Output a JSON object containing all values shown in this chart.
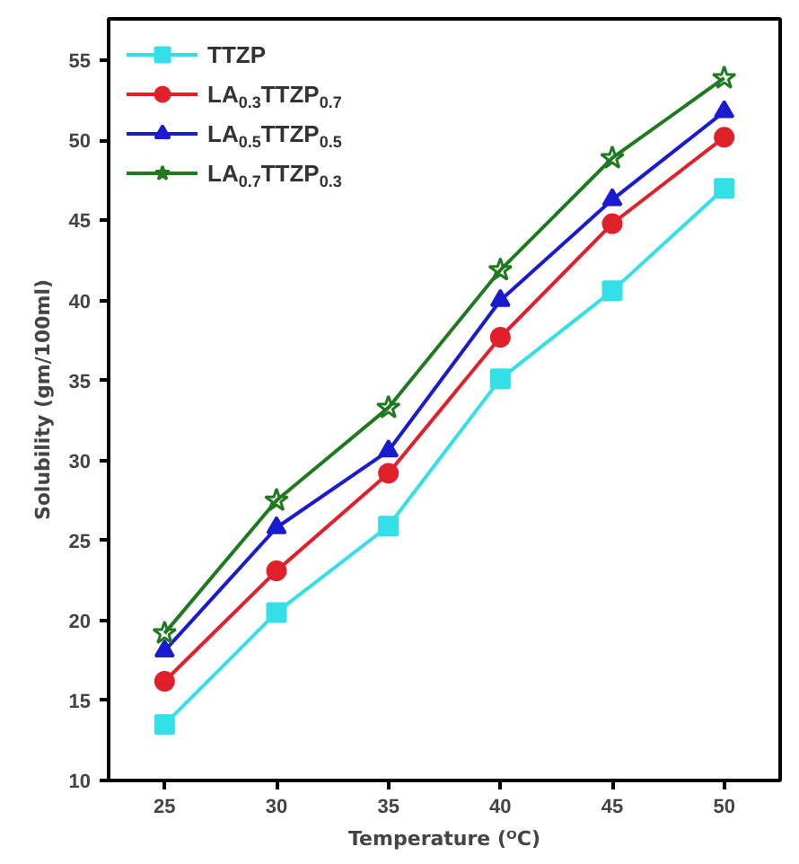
{
  "chart_data": {
    "type": "line",
    "xlabel": "Temperature (ᴼC)",
    "ylabel": "Solubility (gm/100ml)",
    "x": [
      25,
      30,
      35,
      40,
      45,
      50
    ],
    "xlim": [
      22.5,
      52.5
    ],
    "xticks": [
      25,
      30,
      35,
      40,
      45,
      50
    ],
    "ylim": [
      10,
      57.6
    ],
    "yticks": [
      10,
      15,
      20,
      25,
      30,
      35,
      40,
      45,
      50,
      55
    ],
    "grid": false,
    "legend": "top left",
    "series": [
      {
        "name": "TTZP",
        "color": "#33e0e8",
        "marker": "square",
        "values": [
          13.5,
          20.5,
          25.9,
          35.1,
          40.6,
          47.0
        ]
      },
      {
        "name": "LA$_{0.3}$TTZP$_{0.7}$",
        "color": "#e0202a",
        "marker": "circle",
        "values": [
          16.2,
          23.1,
          29.2,
          37.7,
          44.8,
          50.2
        ]
      },
      {
        "name": "LA$_{0.5}$TTZP$_{0.5}$",
        "color": "#1a1ad0",
        "marker": "triangle",
        "values": [
          18.1,
          25.8,
          30.6,
          40.0,
          46.3,
          51.8
        ]
      },
      {
        "name": "LA$_{0.7}$TTZP$_{0.3}$",
        "color": "#1f7a1f",
        "marker": "star",
        "values": [
          19.2,
          27.5,
          33.3,
          41.9,
          48.9,
          53.9
        ]
      }
    ]
  }
}
